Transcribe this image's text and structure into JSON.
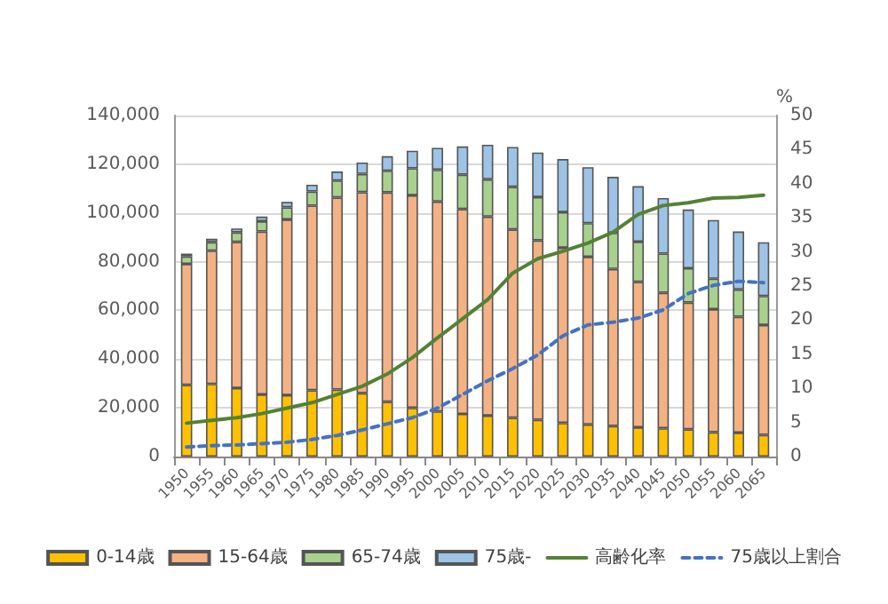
{
  "chart_data": {
    "type": "bar",
    "stacked": true,
    "categories": [
      "1950",
      "1955",
      "1960",
      "1965",
      "1970",
      "1975",
      "1980",
      "1985",
      "1990",
      "1995",
      "2000",
      "2005",
      "2010",
      "2015",
      "2020",
      "2025",
      "2030",
      "2035",
      "2040",
      "2045",
      "2050",
      "2055",
      "2060",
      "2065"
    ],
    "series": [
      {
        "name": "0-14歳",
        "color": "#ffc000",
        "values": [
          29400,
          29800,
          28100,
          25500,
          25200,
          27200,
          27500,
          26000,
          22500,
          20000,
          18500,
          17500,
          16800,
          15900,
          15100,
          13800,
          13200,
          12500,
          12000,
          11600,
          11200,
          10000,
          9800,
          8900
        ]
      },
      {
        "name": "15-64歳",
        "color": "#f4b183",
        "values": [
          49700,
          54700,
          60000,
          66900,
          72100,
          75800,
          78800,
          82500,
          85900,
          87200,
          86200,
          84100,
          81700,
          77300,
          73600,
          71900,
          68800,
          64500,
          59700,
          55600,
          52000,
          50500,
          47600,
          45100
        ]
      },
      {
        "name": "65-74歳",
        "color": "#a9d18e",
        "values": [
          3100,
          3500,
          3900,
          4200,
          5000,
          5800,
          7000,
          7500,
          8900,
          11100,
          13000,
          14100,
          15300,
          17500,
          17800,
          14600,
          13800,
          14800,
          16500,
          16100,
          14100,
          12500,
          11200,
          11900
        ]
      },
      {
        "name": "75歳-",
        "color": "#9dc3e6",
        "values": [
          1100,
          1400,
          1600,
          1900,
          2200,
          2800,
          3700,
          4700,
          6000,
          7200,
          9000,
          11600,
          14200,
          16400,
          18300,
          21800,
          23000,
          23000,
          22800,
          22800,
          24100,
          24100,
          23800,
          22100
        ]
      },
      {
        "name": "高齢化率",
        "type": "line",
        "axis": "y2",
        "color": "#548235",
        "line_style": "solid",
        "values": [
          4.9,
          5.3,
          5.7,
          6.3,
          7.1,
          7.9,
          9.1,
          10.3,
          12.1,
          14.5,
          17.4,
          20.2,
          23.0,
          26.9,
          29.0,
          30.1,
          31.3,
          32.9,
          35.5,
          36.8,
          37.2,
          37.9,
          38.0,
          38.3
        ]
      },
      {
        "name": "75歳以上割合",
        "type": "line",
        "axis": "y2",
        "color": "#4472c4",
        "line_style": "dashed",
        "values": [
          1.4,
          1.6,
          1.7,
          1.9,
          2.1,
          2.5,
          3.1,
          3.9,
          4.8,
          5.7,
          7.1,
          9.1,
          11.1,
          12.9,
          14.9,
          17.7,
          19.3,
          19.7,
          20.3,
          21.5,
          23.9,
          25.1,
          25.7,
          25.5
        ]
      }
    ],
    "ylim": [
      0,
      140000
    ],
    "yticks": [
      0,
      {
        "value": 20000,
        "label": "20,000"
      },
      {
        "value": 40000,
        "label": "40,000"
      },
      {
        "value": 60000,
        "label": "60,000"
      },
      {
        "value": 80000,
        "label": "80,000"
      },
      {
        "value": 100000,
        "label": "100,000"
      },
      {
        "value": 120000,
        "label": "120,000"
      },
      {
        "value": 140000,
        "label": "140,000"
      }
    ],
    "y2label": "%",
    "y2lim": [
      0,
      50
    ],
    "y2ticks": [
      0,
      5,
      10,
      15,
      20,
      25,
      30,
      35,
      40,
      45,
      50
    ],
    "grid": "y",
    "legend": "bottom",
    "marker": "none"
  }
}
